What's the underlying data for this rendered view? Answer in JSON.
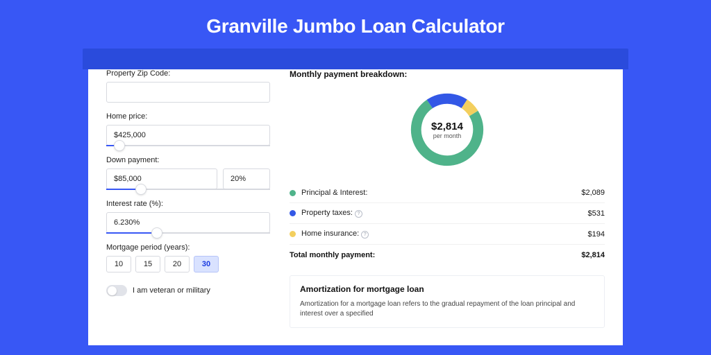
{
  "title": "Granville Jumbo Loan Calculator",
  "colors": {
    "page_bg": "#3857f5",
    "shadow_bg": "#2a4bdc",
    "card_bg": "#ffffff",
    "accent": "#3857f5",
    "border": "#d7d9df"
  },
  "form": {
    "zip": {
      "label": "Property Zip Code:",
      "value": ""
    },
    "home_price": {
      "label": "Home price:",
      "value": "$425,000",
      "slider_pct": 8
    },
    "down_payment": {
      "label": "Down payment:",
      "value": "$85,000",
      "pct_value": "20%",
      "slider_pct": 21
    },
    "interest": {
      "label": "Interest rate (%):",
      "value": "6.230%",
      "slider_pct": 31
    },
    "period": {
      "label": "Mortgage period (years):",
      "options": [
        "10",
        "15",
        "20",
        "30"
      ],
      "selected": "30"
    },
    "veteran_label": "I am veteran or military"
  },
  "breakdown": {
    "title": "Monthly payment breakdown:",
    "center_amount": "$2,814",
    "center_sub": "per month",
    "donut": {
      "slices": [
        {
          "label": "Principal & Interest:",
          "value": "$2,089",
          "color": "#4fb38a",
          "pct": 74.3
        },
        {
          "label": "Property taxes:",
          "value": "$531",
          "color": "#3358e6",
          "pct": 18.8,
          "info": true
        },
        {
          "label": "Home insurance:",
          "value": "$194",
          "color": "#f3cf5e",
          "pct": 6.9,
          "info": true
        }
      ],
      "ring_width": 16,
      "bg": "#ffffff"
    },
    "total_label": "Total monthly payment:",
    "total_value": "$2,814"
  },
  "amortization": {
    "title": "Amortization for mortgage loan",
    "text": "Amortization for a mortgage loan refers to the gradual repayment of the loan principal and interest over a specified"
  }
}
